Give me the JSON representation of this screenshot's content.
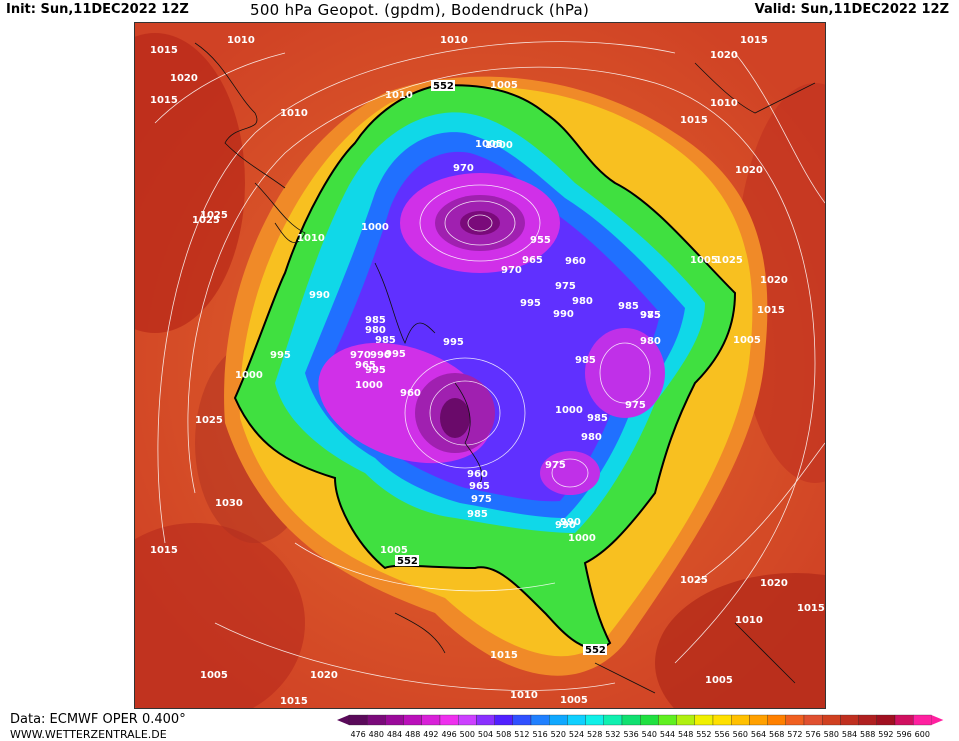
{
  "header": {
    "init": "Init: Sun,11DEC2022 12Z",
    "title": "500 hPa Geopot. (gpdm), Bodendruck (hPa)",
    "valid": "Valid: Sun,11DEC2022 12Z"
  },
  "footer": {
    "data_source": "Data: ECMWF OPER 0.400°",
    "website": "WWW.WETTERZENTRALE.DE"
  },
  "colorbar": {
    "ticks": [
      "476",
      "480",
      "484",
      "488",
      "492",
      "496",
      "500",
      "504",
      "508",
      "512",
      "516",
      "520",
      "524",
      "528",
      "532",
      "536",
      "540",
      "544",
      "548",
      "552",
      "556",
      "560",
      "564",
      "568",
      "572",
      "576",
      "580",
      "584",
      "588",
      "592",
      "596",
      "600"
    ],
    "colors": [
      "#5a0a5a",
      "#7a0a7a",
      "#9a0a9a",
      "#ba10ba",
      "#d820d8",
      "#ee30ee",
      "#cc40ff",
      "#8a30ff",
      "#5020ff",
      "#3050ff",
      "#2080ff",
      "#10a8ff",
      "#10d0ff",
      "#10f0e8",
      "#10f0b0",
      "#10e070",
      "#20e040",
      "#60f020",
      "#b0f010",
      "#f0f000",
      "#ffe000",
      "#ffc000",
      "#ffa000",
      "#ff8000",
      "#f06020",
      "#e05030",
      "#d04020",
      "#c03020",
      "#b02020",
      "#a01020",
      "#d01060",
      "#ff20a0"
    ]
  },
  "pressure_labels": [
    {
      "t": "1010"
    },
    {
      "t": "1015"
    },
    {
      "t": "1020"
    },
    {
      "t": "1015"
    },
    {
      "t": "1010"
    },
    {
      "t": "1010"
    },
    {
      "t": "1005"
    },
    {
      "t": "552"
    },
    {
      "t": "1010"
    },
    {
      "t": "1010"
    },
    {
      "t": "1015"
    },
    {
      "t": "1020"
    },
    {
      "t": "1020"
    },
    {
      "t": "1025"
    },
    {
      "t": "1020"
    },
    {
      "t": "1015"
    },
    {
      "t": "1005"
    },
    {
      "t": "995"
    },
    {
      "t": "990"
    },
    {
      "t": "985"
    },
    {
      "t": "980"
    },
    {
      "t": "970"
    },
    {
      "t": "1000"
    },
    {
      "t": "1005"
    },
    {
      "t": "1015"
    },
    {
      "t": "1010"
    },
    {
      "t": "1000"
    },
    {
      "t": "955"
    },
    {
      "t": "965"
    },
    {
      "t": "960"
    },
    {
      "t": "970"
    },
    {
      "t": "975"
    },
    {
      "t": "980"
    },
    {
      "t": "985"
    },
    {
      "t": "995"
    },
    {
      "t": "990"
    },
    {
      "t": "985"
    },
    {
      "t": "975"
    },
    {
      "t": "1000"
    },
    {
      "t": "985"
    },
    {
      "t": "980"
    },
    {
      "t": "975"
    },
    {
      "t": "990"
    },
    {
      "t": "985"
    },
    {
      "t": "980"
    },
    {
      "t": "975"
    },
    {
      "t": "995"
    },
    {
      "t": "970"
    },
    {
      "t": "965"
    },
    {
      "t": "995"
    },
    {
      "t": "1000"
    },
    {
      "t": "960"
    },
    {
      "t": "960"
    },
    {
      "t": "965"
    },
    {
      "t": "975"
    },
    {
      "t": "985"
    },
    {
      "t": "990"
    },
    {
      "t": "1000"
    },
    {
      "t": "1005"
    },
    {
      "t": "552"
    },
    {
      "t": "1025"
    },
    {
      "t": "1030"
    },
    {
      "t": "1015"
    },
    {
      "t": "1005"
    },
    {
      "t": "1025"
    },
    {
      "t": "1020"
    },
    {
      "t": "1015"
    },
    {
      "t": "1010"
    },
    {
      "t": "1015"
    },
    {
      "t": "1020"
    },
    {
      "t": "1015"
    },
    {
      "t": "1010"
    },
    {
      "t": "1005"
    },
    {
      "t": "1005"
    },
    {
      "t": "552"
    },
    {
      "t": "1005"
    },
    {
      "t": "1025"
    },
    {
      "t": "1025"
    },
    {
      "t": "1000"
    },
    {
      "t": "995"
    },
    {
      "t": "990"
    },
    {
      "t": "985"
    }
  ]
}
